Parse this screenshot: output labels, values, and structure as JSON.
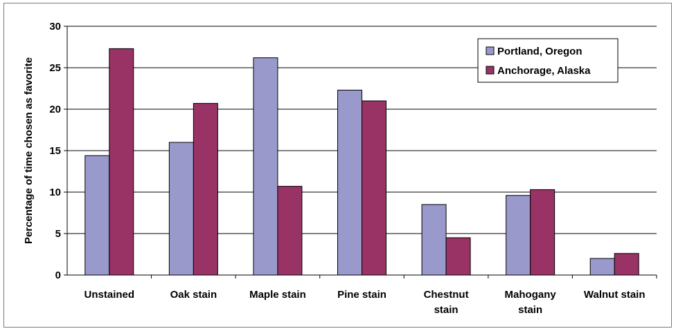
{
  "chart_data": {
    "type": "bar",
    "categories": [
      [
        "Unstained"
      ],
      [
        "Oak stain"
      ],
      [
        "Maple stain"
      ],
      [
        "Pine stain"
      ],
      [
        "Chestnut",
        "stain"
      ],
      [
        "Mahogany",
        "stain"
      ],
      [
        "Walnut stain"
      ]
    ],
    "series": [
      {
        "name": "Portland, Oregon",
        "color": "#9999cc",
        "values": [
          14.4,
          16.0,
          26.2,
          22.3,
          8.5,
          9.6,
          2.0
        ]
      },
      {
        "name": "Anchorage, Alaska",
        "color": "#993366",
        "values": [
          27.3,
          20.7,
          10.7,
          21.0,
          4.5,
          10.3,
          2.6
        ]
      }
    ],
    "ylabel": "Percentage of time chosen as favorite",
    "ylim": [
      0,
      30
    ],
    "yticks": [
      "0",
      "5",
      "10",
      "15",
      "20",
      "25",
      "30"
    ],
    "grid": true,
    "legend_position": "top-right"
  }
}
